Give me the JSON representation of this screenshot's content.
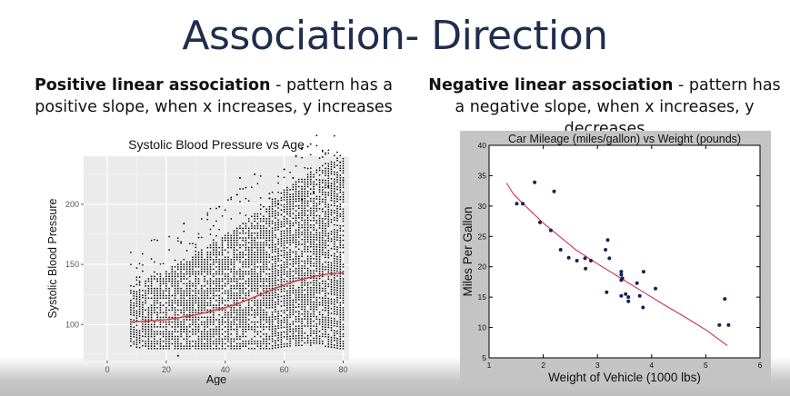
{
  "slide": {
    "title": "Association- Direction",
    "left_heading": "Positive linear association",
    "left_text": " - pattern has a positive slope, when x increases, y increases",
    "right_heading": "Negative linear association",
    "right_text": " - pattern has a negative slope, when x increases, y decreases"
  },
  "chart_data": [
    {
      "type": "scatter",
      "title": "Systolic Blood Pressure vs Age",
      "xlabel": "Age",
      "ylabel": "Systolic Blood Pressure",
      "xlim": [
        -8,
        82
      ],
      "ylim": [
        70,
        240
      ],
      "xticks": [
        0,
        20,
        40,
        60,
        80
      ],
      "yticks": [
        100,
        150,
        200
      ],
      "grid": true,
      "background": "#ebebeb",
      "point_color": "#000000",
      "trend_color": "#d23a3a",
      "trend": {
        "x": [
          8,
          15,
          20,
          25,
          30,
          35,
          40,
          45,
          50,
          55,
          60,
          65,
          70,
          75,
          80
        ],
        "y": [
          102,
          103,
          104,
          106,
          108,
          111,
          114,
          118,
          123,
          128,
          133,
          137,
          140,
          142,
          143
        ]
      },
      "outliers": [
        {
          "x": 26,
          "y": 184
        },
        {
          "x": 45,
          "y": 222
        },
        {
          "x": 50,
          "y": 225
        },
        {
          "x": 60,
          "y": 229
        },
        {
          "x": 63,
          "y": 222
        },
        {
          "x": 79,
          "y": 235
        },
        {
          "x": 55,
          "y": 205
        },
        {
          "x": 70,
          "y": 210
        },
        {
          "x": 38,
          "y": 198
        },
        {
          "x": 75,
          "y": 215
        },
        {
          "x": 66,
          "y": 204
        },
        {
          "x": 80,
          "y": 220
        },
        {
          "x": 24,
          "y": 74
        },
        {
          "x": 44,
          "y": 208
        },
        {
          "x": 58,
          "y": 200
        }
      ]
    },
    {
      "type": "scatter",
      "title": "Car Mileage (miles/gallon) vs Weight (pounds)",
      "xlabel": "Weight of Vehicle (1000 lbs)",
      "ylabel": "Miles Per Gallon",
      "xlim": [
        1,
        6
      ],
      "ylim": [
        5,
        40
      ],
      "xticks": [
        1,
        2,
        3,
        4,
        5,
        6
      ],
      "yticks": [
        5,
        10,
        15,
        20,
        25,
        30,
        35,
        40
      ],
      "point_color": "#1a1f5e",
      "trend_color": "#cc3355",
      "trend": {
        "x": [
          1.32,
          1.45,
          1.6,
          1.8,
          2.0,
          2.3,
          2.6,
          3.0,
          3.4,
          3.8,
          4.2,
          4.6,
          5.0,
          5.4
        ],
        "y": [
          33.8,
          32.0,
          30.6,
          28.9,
          27.2,
          25.0,
          22.8,
          20.5,
          18.3,
          16.1,
          13.9,
          11.8,
          9.6,
          7.0
        ]
      },
      "points": [
        {
          "x": 1.51,
          "y": 30.4
        },
        {
          "x": 1.62,
          "y": 30.4
        },
        {
          "x": 1.84,
          "y": 33.9
        },
        {
          "x": 1.94,
          "y": 27.3
        },
        {
          "x": 2.14,
          "y": 26.0
        },
        {
          "x": 2.2,
          "y": 32.4
        },
        {
          "x": 2.32,
          "y": 22.8
        },
        {
          "x": 2.47,
          "y": 21.5
        },
        {
          "x": 2.62,
          "y": 21.0
        },
        {
          "x": 2.78,
          "y": 19.7
        },
        {
          "x": 2.77,
          "y": 21.4
        },
        {
          "x": 2.88,
          "y": 21.0
        },
        {
          "x": 3.15,
          "y": 22.8
        },
        {
          "x": 3.17,
          "y": 15.8
        },
        {
          "x": 3.19,
          "y": 24.4
        },
        {
          "x": 3.22,
          "y": 21.4
        },
        {
          "x": 3.44,
          "y": 18.7
        },
        {
          "x": 3.44,
          "y": 19.2
        },
        {
          "x": 3.44,
          "y": 17.8
        },
        {
          "x": 3.46,
          "y": 18.1
        },
        {
          "x": 3.44,
          "y": 15.2
        },
        {
          "x": 3.52,
          "y": 15.5
        },
        {
          "x": 3.57,
          "y": 14.3
        },
        {
          "x": 3.57,
          "y": 15.0
        },
        {
          "x": 3.73,
          "y": 17.3
        },
        {
          "x": 3.78,
          "y": 15.2
        },
        {
          "x": 3.84,
          "y": 13.3
        },
        {
          "x": 3.85,
          "y": 19.2
        },
        {
          "x": 4.07,
          "y": 16.4
        },
        {
          "x": 5.25,
          "y": 10.4
        },
        {
          "x": 5.35,
          "y": 14.7
        },
        {
          "x": 5.42,
          "y": 10.4
        }
      ]
    }
  ]
}
